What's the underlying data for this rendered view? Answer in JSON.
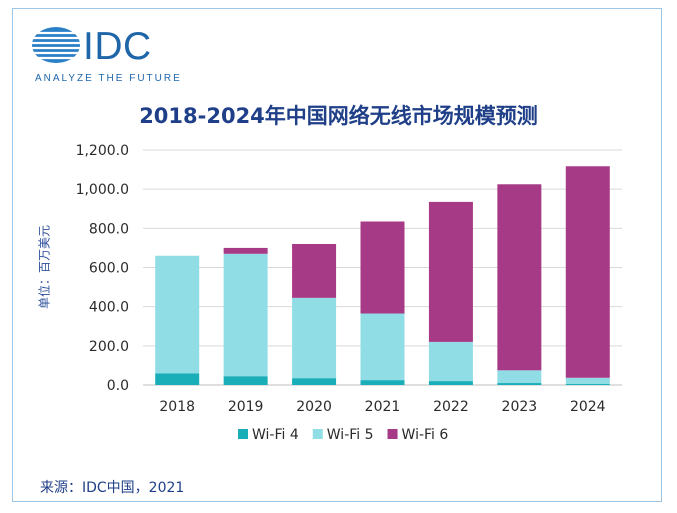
{
  "brand": {
    "name": "IDC",
    "tagline": "ANALYZE THE FUTURE"
  },
  "source": "来源：IDC中国，2021",
  "watermark": "",
  "chart_data": {
    "type": "bar",
    "title": "2018-2024年中国网络无线市场规模预测",
    "xlabel": "",
    "ylabel": "单位：百万美元",
    "categories": [
      "2018",
      "2019",
      "2020",
      "2021",
      "2022",
      "2023",
      "2024"
    ],
    "ylim": [
      0,
      1200
    ],
    "yticks": [
      0,
      200,
      400,
      600,
      800,
      1000,
      1200
    ],
    "ytick_labels": [
      "0.0",
      "200.0",
      "400.0",
      "600.0",
      "800.0",
      "1,000.0",
      "1,200.0"
    ],
    "stacked": true,
    "grid": true,
    "legend_position": "bottom",
    "series": [
      {
        "name": "Wi-Fi 4",
        "color": "#1aaeb9",
        "values": [
          60,
          45,
          35,
          25,
          20,
          10,
          5
        ]
      },
      {
        "name": "Wi-Fi 5",
        "color": "#91dde6",
        "values": [
          600,
          625,
          410,
          340,
          200,
          65,
          32
        ]
      },
      {
        "name": "Wi-Fi 6",
        "color": "#a73a86",
        "values": [
          0,
          30,
          275,
          470,
          715,
          950,
          1080
        ]
      }
    ]
  }
}
